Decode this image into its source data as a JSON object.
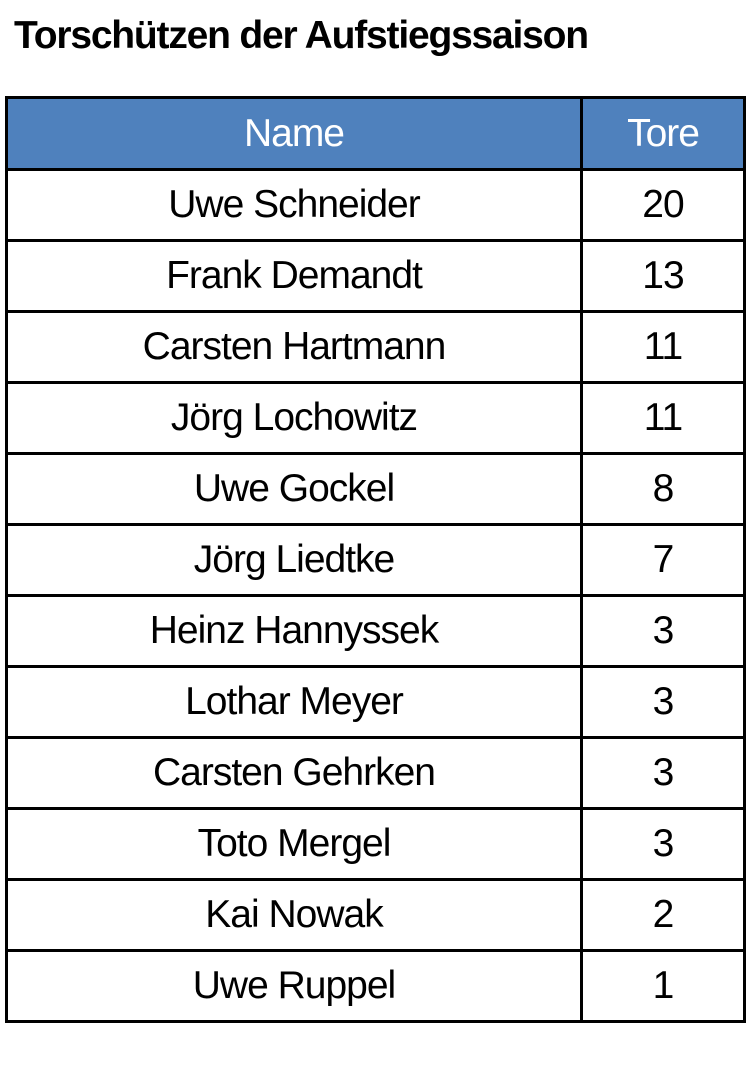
{
  "title": "Torschützen der Aufstiegssaison",
  "table": {
    "headers": [
      "Name",
      "Tore"
    ],
    "header_color": "#4f81bd",
    "rows": [
      {
        "name": "Uwe Schneider",
        "tore": "20"
      },
      {
        "name": "Frank Demandt",
        "tore": "13"
      },
      {
        "name": "Carsten Hartmann",
        "tore": "11"
      },
      {
        "name": "Jörg Lochowitz",
        "tore": "11"
      },
      {
        "name": "Uwe Gockel",
        "tore": "8"
      },
      {
        "name": "Jörg Liedtke",
        "tore": "7"
      },
      {
        "name": "Heinz Hannyssek",
        "tore": "3"
      },
      {
        "name": "Lothar Meyer",
        "tore": "3"
      },
      {
        "name": "Carsten Gehrken",
        "tore": "3"
      },
      {
        "name": "Toto Mergel",
        "tore": "3"
      },
      {
        "name": "Kai Nowak",
        "tore": "2"
      },
      {
        "name": "Uwe Ruppel",
        "tore": "1"
      }
    ]
  }
}
